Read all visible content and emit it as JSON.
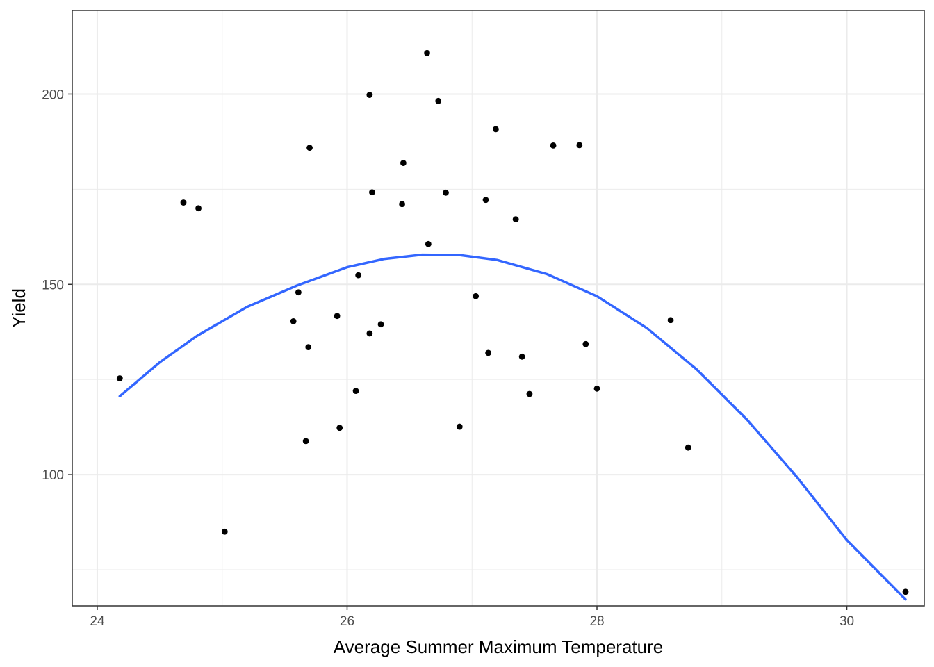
{
  "chart_data": {
    "type": "scatter",
    "title": "",
    "xlabel": "Average Summer Maximum Temperature",
    "ylabel": "Yield",
    "xlim": [
      23.8,
      30.62
    ],
    "ylim": [
      65.5,
      222.0
    ],
    "x_ticks": [
      24,
      26,
      28,
      30
    ],
    "y_ticks": [
      100,
      150,
      200
    ],
    "x_minor": [
      25,
      27,
      29
    ],
    "y_minor": [
      75,
      125,
      175
    ],
    "grid": true,
    "legend": "none",
    "points": [
      {
        "x": 24.18,
        "y": 125.3
      },
      {
        "x": 24.69,
        "y": 171.5
      },
      {
        "x": 24.81,
        "y": 170.0
      },
      {
        "x": 25.02,
        "y": 85.0
      },
      {
        "x": 25.57,
        "y": 140.3
      },
      {
        "x": 25.61,
        "y": 147.9
      },
      {
        "x": 25.67,
        "y": 108.8
      },
      {
        "x": 25.69,
        "y": 133.5
      },
      {
        "x": 25.7,
        "y": 185.9
      },
      {
        "x": 25.92,
        "y": 141.7
      },
      {
        "x": 25.94,
        "y": 112.3
      },
      {
        "x": 26.07,
        "y": 122.0
      },
      {
        "x": 26.09,
        "y": 152.4
      },
      {
        "x": 26.18,
        "y": 137.1
      },
      {
        "x": 26.18,
        "y": 199.8
      },
      {
        "x": 26.2,
        "y": 174.2
      },
      {
        "x": 26.27,
        "y": 139.5
      },
      {
        "x": 26.44,
        "y": 171.1
      },
      {
        "x": 26.45,
        "y": 181.9
      },
      {
        "x": 26.64,
        "y": 210.8
      },
      {
        "x": 26.65,
        "y": 160.6
      },
      {
        "x": 26.73,
        "y": 198.2
      },
      {
        "x": 26.79,
        "y": 174.1
      },
      {
        "x": 26.9,
        "y": 112.6
      },
      {
        "x": 27.03,
        "y": 146.9
      },
      {
        "x": 27.11,
        "y": 172.2
      },
      {
        "x": 27.13,
        "y": 132.0
      },
      {
        "x": 27.19,
        "y": 190.8
      },
      {
        "x": 27.35,
        "y": 167.1
      },
      {
        "x": 27.4,
        "y": 131.0
      },
      {
        "x": 27.46,
        "y": 121.2
      },
      {
        "x": 27.65,
        "y": 186.5
      },
      {
        "x": 27.86,
        "y": 186.6
      },
      {
        "x": 27.91,
        "y": 134.3
      },
      {
        "x": 28.0,
        "y": 122.6
      },
      {
        "x": 28.59,
        "y": 140.6
      },
      {
        "x": 28.73,
        "y": 107.1
      },
      {
        "x": 30.47,
        "y": 69.2
      }
    ],
    "series": [
      {
        "type": "line",
        "x": [
          24.18,
          24.5,
          24.8,
          25.2,
          25.6,
          26.0,
          26.3,
          26.6,
          26.9,
          27.2,
          27.6,
          28.0,
          28.4,
          28.8,
          29.2,
          29.6,
          30.0,
          30.47
        ],
        "y": [
          120.6,
          129.5,
          136.5,
          144.1,
          149.7,
          154.5,
          156.7,
          157.8,
          157.7,
          156.4,
          152.7,
          146.9,
          138.5,
          127.6,
          114.5,
          99.4,
          82.8,
          67.2
        ]
      }
    ],
    "colors": {
      "points": "#000000",
      "fit_line": "#3366FF",
      "grid": "#EBEBEB",
      "panel_border": "#333333",
      "tick_text": "#4D4D4D"
    }
  }
}
